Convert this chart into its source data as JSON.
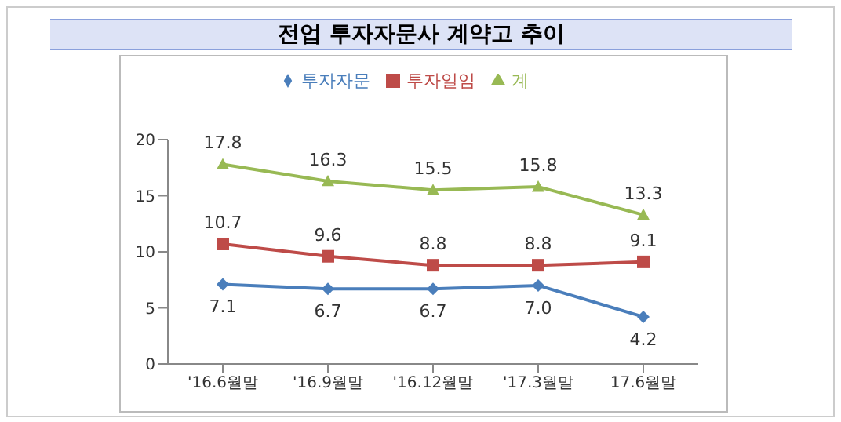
{
  "chart_data": {
    "type": "line",
    "title": "전업 투자자문사 계약고 추이",
    "categories": [
      "'16.6월말",
      "'16.9월말",
      "'16.12월말",
      "'17.3월말",
      "17.6월말"
    ],
    "series": [
      {
        "name": "투자자문",
        "color": "#4a7ebb",
        "marker": "diamond",
        "values": [
          7.1,
          6.7,
          6.7,
          7.0,
          4.2
        ],
        "value_labels": [
          "7.1",
          "6.7",
          "6.7",
          "7.0",
          "4.2"
        ]
      },
      {
        "name": "투자일임",
        "color": "#be4b48",
        "marker": "square",
        "values": [
          10.7,
          9.6,
          8.8,
          8.8,
          9.1
        ],
        "value_labels": [
          "10.7",
          "9.6",
          "8.8",
          "8.8",
          "9.1"
        ]
      },
      {
        "name": "계",
        "color": "#98b954",
        "marker": "triangle",
        "values": [
          17.8,
          16.3,
          15.5,
          15.8,
          13.3
        ],
        "value_labels": [
          "17.8",
          "16.3",
          "15.5",
          "15.8",
          "13.3"
        ]
      }
    ],
    "ylim": [
      0,
      20
    ],
    "yticks": [
      0,
      5,
      10,
      15,
      20
    ],
    "grid": false,
    "legend": "top",
    "line_style": "solid"
  }
}
